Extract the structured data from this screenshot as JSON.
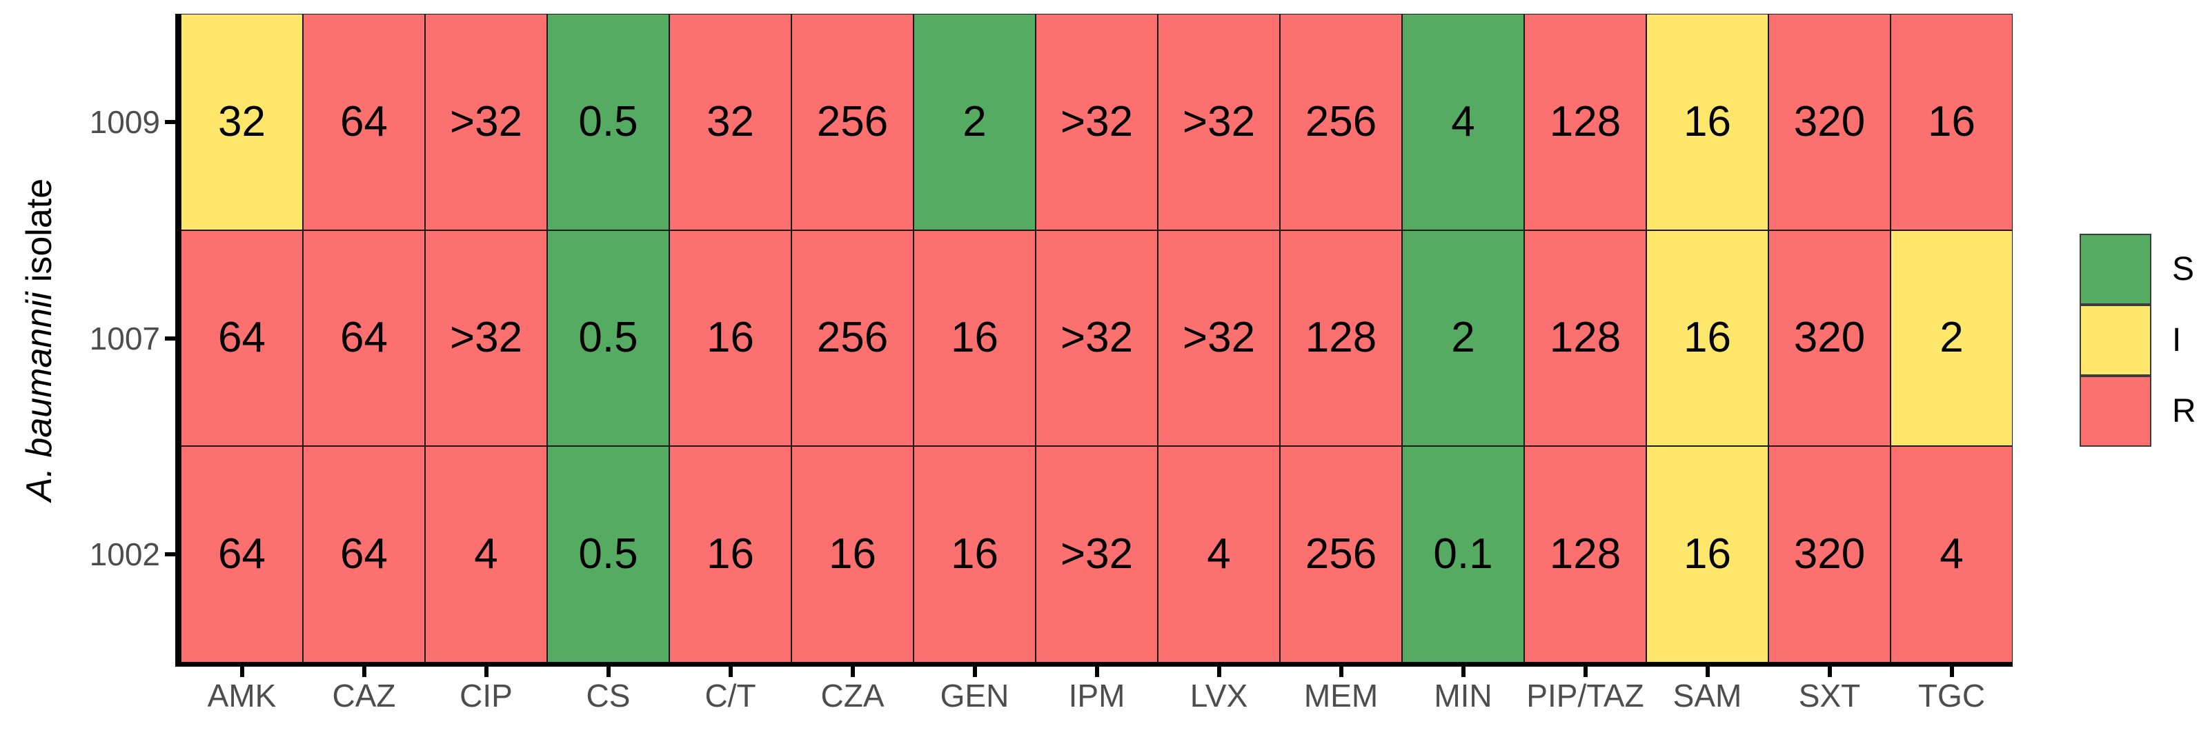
{
  "figure": {
    "background": "#ffffff"
  },
  "y_axis": {
    "title_italic": "A. baumannii",
    "title_regular": "isolate",
    "tick_labels": [
      "1009",
      "1007",
      "1002"
    ]
  },
  "x_axis": {
    "tick_labels": [
      "AMK",
      "CAZ",
      "CIP",
      "CS",
      "C/T",
      "CZA",
      "GEN",
      "IPM",
      "LVX",
      "MEM",
      "MIN",
      "PIP/TAZ",
      "SAM",
      "SXT",
      "TGC"
    ]
  },
  "legend": {
    "entries": [
      {
        "label": "S",
        "color": "#56ab63"
      },
      {
        "label": "I",
        "color": "#ffe76c"
      },
      {
        "label": "R",
        "color": "#fc7170"
      }
    ]
  },
  "colors": {
    "S": "#56ab63",
    "I": "#ffe76c",
    "R": "#fc7170",
    "cell_border": "#1a1a1a",
    "axis": "#000000",
    "tick_text": "#4d4d4d"
  },
  "chart_data": {
    "type": "heatmap",
    "title": "",
    "xlabel": "",
    "ylabel": "A. baumannii isolate",
    "x_categories": [
      "AMK",
      "CAZ",
      "CIP",
      "CS",
      "C/T",
      "CZA",
      "GEN",
      "IPM",
      "LVX",
      "MEM",
      "MIN",
      "PIP/TAZ",
      "SAM",
      "SXT",
      "TGC"
    ],
    "y_categories": [
      "1009",
      "1007",
      "1002"
    ],
    "value_unit": "MIC",
    "category_legend": {
      "S": "#56ab63",
      "I": "#ffe76c",
      "R": "#fc7170"
    },
    "legend_position": "right",
    "rows": [
      {
        "isolate": "1009",
        "mic_values": [
          "32",
          "64",
          ">32",
          "0.5",
          "32",
          "256",
          "2",
          ">32",
          ">32",
          "256",
          "4",
          "128",
          "16",
          "320",
          "16"
        ],
        "categories": [
          "I",
          "R",
          "R",
          "S",
          "R",
          "R",
          "S",
          "R",
          "R",
          "R",
          "S",
          "R",
          "I",
          "R",
          "R"
        ]
      },
      {
        "isolate": "1007",
        "mic_values": [
          "64",
          "64",
          ">32",
          "0.5",
          "16",
          "256",
          "16",
          ">32",
          ">32",
          "128",
          "2",
          "128",
          "16",
          "320",
          "2"
        ],
        "categories": [
          "R",
          "R",
          "R",
          "S",
          "R",
          "R",
          "R",
          "R",
          "R",
          "R",
          "S",
          "R",
          "I",
          "R",
          "I"
        ]
      },
      {
        "isolate": "1002",
        "mic_values": [
          "64",
          "64",
          "4",
          "0.5",
          "16",
          "16",
          "16",
          ">32",
          "4",
          "256",
          "0.1",
          "128",
          "16",
          "320",
          "4"
        ],
        "categories": [
          "R",
          "R",
          "R",
          "S",
          "R",
          "R",
          "R",
          "R",
          "R",
          "R",
          "S",
          "R",
          "I",
          "R",
          "R"
        ]
      }
    ]
  }
}
